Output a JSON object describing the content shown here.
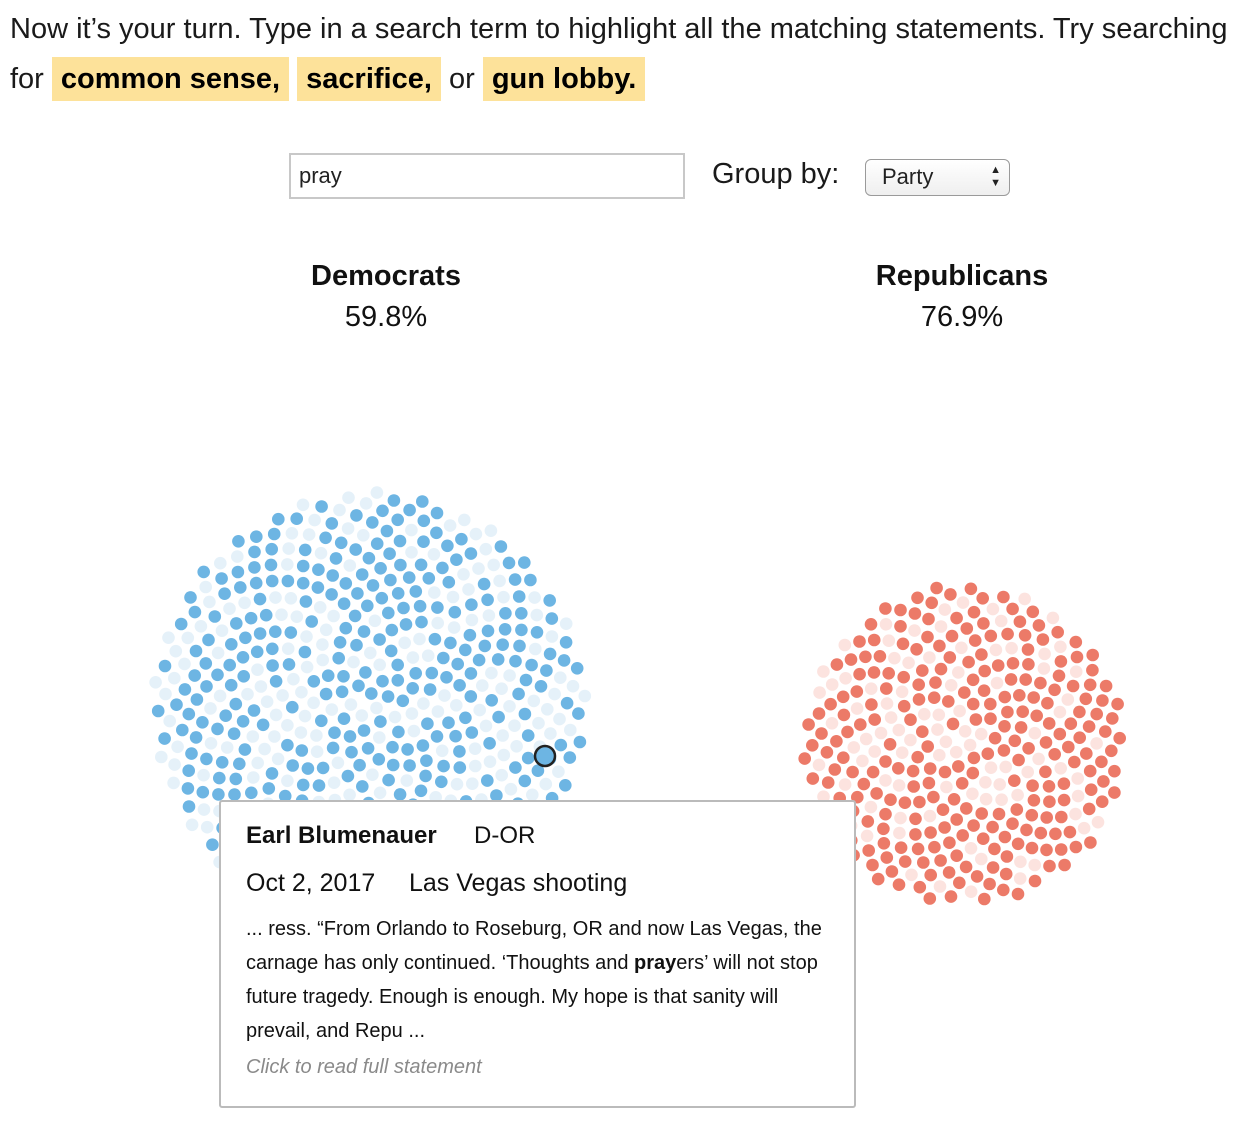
{
  "intro": {
    "text_before": "Now it’s your turn. Type in a search term to highlight all the matching statements. Try searching for",
    "suggestions": [
      "common sense,",
      "sacrifice,",
      "gun lobby."
    ],
    "joiner": "or"
  },
  "search": {
    "value": "pray"
  },
  "group_by": {
    "label": "Group by:",
    "selected": "Party"
  },
  "groups": [
    {
      "name": "Democrats",
      "percent": "59.8%",
      "highlight_color": "#6db5e3",
      "dim_color": "#e5f1f9",
      "highlight_fraction": 0.598
    },
    {
      "name": "Republicans",
      "percent": "76.9%",
      "highlight_color": "#ec7a68",
      "dim_color": "#fce3df",
      "highlight_fraction": 0.769
    }
  ],
  "tooltip": {
    "name": "Earl Blumenauer",
    "party": "D-OR",
    "date": "Oct 2, 2017",
    "event": "Las Vegas shooting",
    "excerpt_before": "... ress. “From Orlando to Roseburg, OR and now Las Vegas, the carnage has only continued. ‘Thoughts and ",
    "excerpt_match": "pray",
    "excerpt_after": "ers’ will not stop future tragedy. Enough is enough. My hope is that sanity will prevail, and Repu ...",
    "link": "Click to read full statement"
  }
}
